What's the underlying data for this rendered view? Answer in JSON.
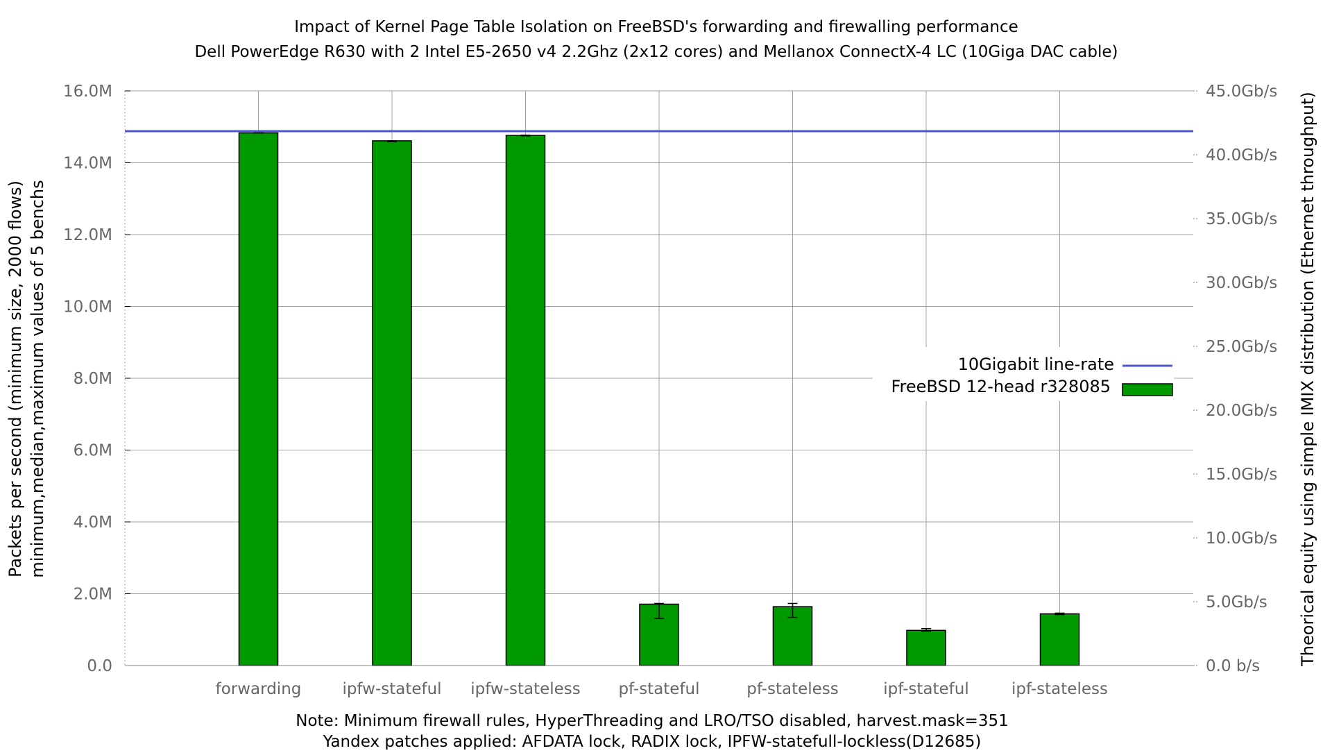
{
  "chart_data": {
    "type": "bar",
    "title_lines": [
      "Impact of Kernel Page Table Isolation on FreeBSD's forwarding and firewalling performance",
      "Dell PowerEdge R630 with 2 Intel E5-2650 v4 2.2Ghz (2x12 cores) and Mellanox ConnectX-4 LC (10Giga DAC cable)"
    ],
    "ylabel_lines": [
      "Packets per second (minimum size, 2000 flows)",
      "minimum,median,maximum values of 5 benchs"
    ],
    "y2label": "Theorical equity using simple IMIX distribution (Ethernet throughput)",
    "note_lines": [
      "Note: Minimum firewall rules, HyperThreading and LRO/TSO disabled, harvest.mask=351",
      "Yandex patches applied: AFDATA lock, RADIX lock, IPFW-statefull-lockless(D12685)"
    ],
    "categories": [
      "forwarding",
      "ipfw-stateful",
      "ipfw-stateless",
      "pf-stateful",
      "pf-stateless",
      "ipf-stateful",
      "ipf-stateless"
    ],
    "ylim": [
      0,
      16000000
    ],
    "y_ticks": [
      0,
      2000000,
      4000000,
      6000000,
      8000000,
      10000000,
      12000000,
      14000000,
      16000000
    ],
    "y_tick_labels": [
      "0.0",
      "2.0M",
      "4.0M",
      "6.0M",
      "8.0M",
      "10.0M",
      "12.0M",
      "14.0M",
      "16.0M"
    ],
    "y2lim": [
      0,
      45000000000
    ],
    "y2_ticks": [
      0,
      5000000000,
      10000000000,
      15000000000,
      20000000000,
      25000000000,
      30000000000,
      35000000000,
      40000000000,
      45000000000
    ],
    "y2_tick_labels": [
      "0.0 b/s",
      "5.0Gb/s",
      "10.0Gb/s",
      "15.0Gb/s",
      "20.0Gb/s",
      "25.0Gb/s",
      "30.0Gb/s",
      "35.0Gb/s",
      "40.0Gb/s",
      "45.0Gb/s"
    ],
    "grid": true,
    "legend_position": "right",
    "line_rate": {
      "name": "10Gigabit line-rate",
      "value": 14880000,
      "color": "#4c55cc"
    },
    "series": [
      {
        "name": "FreeBSD 12-head r328085",
        "color": "#009900",
        "median": [
          14830000,
          14610000,
          14760000,
          1710000,
          1640000,
          980000,
          1440000
        ],
        "min": [
          14830000,
          14590000,
          14750000,
          1310000,
          1340000,
          960000,
          1420000
        ],
        "max": [
          14830000,
          14610000,
          14770000,
          1730000,
          1730000,
          1030000,
          1460000
        ]
      }
    ]
  }
}
